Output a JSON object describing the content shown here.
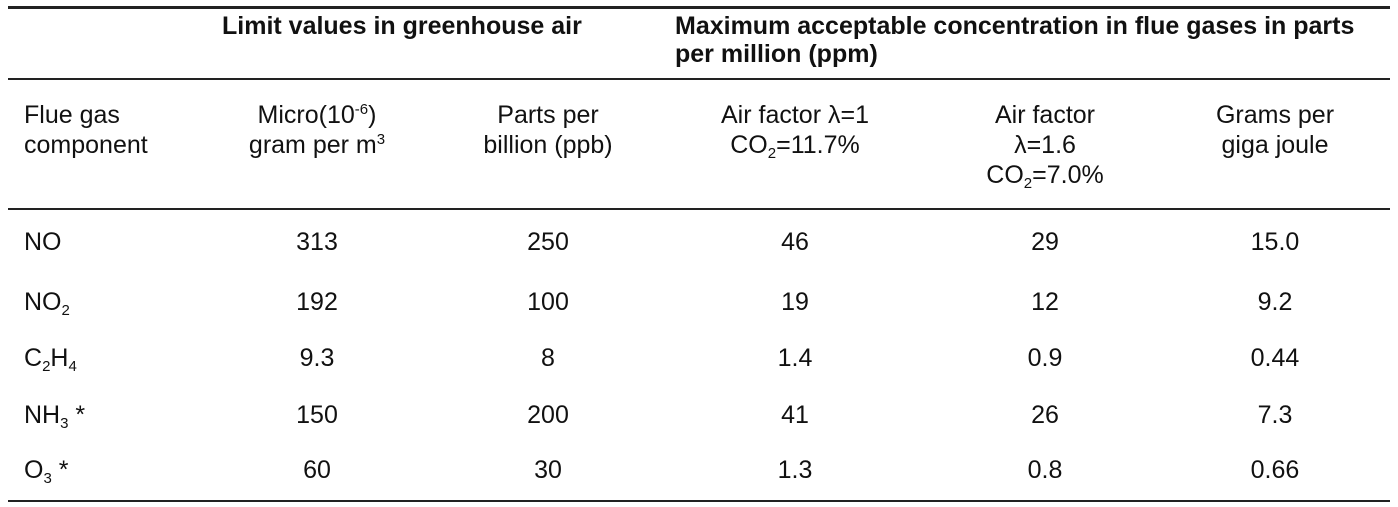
{
  "groups": {
    "limit": "Limit values in greenhouse air",
    "max": "Maximum acceptable concentration in flue gases in parts per million (ppm)"
  },
  "headers": {
    "component_1": "Flue gas",
    "component_2": "component",
    "micro_a": "Micro(10",
    "micro_exp1": "-6",
    "micro_b": ")",
    "micro_c": "gram per m",
    "micro_exp2": "3",
    "ppb_1": "Parts per",
    "ppb_2": "billion (ppb)",
    "air1_1": "Air factor λ=1",
    "air1_2a": "CO",
    "air1_2sub": "2",
    "air1_2b": "=11.7%",
    "air16_1": "Air factor",
    "air16_2": "λ=1.6",
    "air16_3a": "CO",
    "air16_3sub": "2",
    "air16_3b": "=7.0%",
    "gj_1": "Grams per",
    "gj_2": "giga joule"
  },
  "rows": [
    {
      "comp": "NO",
      "sub1": "",
      "mid": "",
      "sub2": "",
      "star": "",
      "micro": "313",
      "ppb": "250",
      "air1": "46",
      "air16": "29",
      "gj": "15.0"
    },
    {
      "comp": "NO",
      "sub1": "2",
      "mid": "",
      "sub2": "",
      "star": "",
      "micro": "192",
      "ppb": "100",
      "air1": "19",
      "air16": "12",
      "gj": "9.2"
    },
    {
      "comp": "C",
      "sub1": "2",
      "mid": "H",
      "sub2": "4",
      "star": "",
      "micro": "9.3",
      "ppb": "8",
      "air1": "1.4",
      "air16": "0.9",
      "gj": "0.44"
    },
    {
      "comp": "NH",
      "sub1": "3",
      "mid": "",
      "sub2": "",
      "star": " *",
      "micro": "150",
      "ppb": "200",
      "air1": "41",
      "air16": "26",
      "gj": "7.3"
    },
    {
      "comp": "O",
      "sub1": "3",
      "mid": "",
      "sub2": "",
      "star": " *",
      "micro": "60",
      "ppb": "30",
      "air1": "1.3",
      "air16": "0.8",
      "gj": "0.66"
    }
  ]
}
